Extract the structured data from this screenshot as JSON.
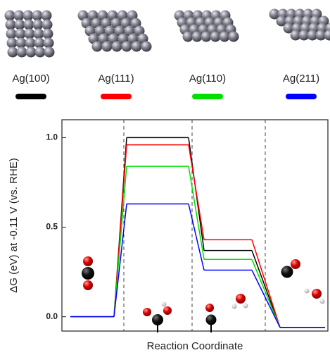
{
  "chart_data": {
    "type": "step",
    "y_label": "ΔG (eV) at -0.11 V (vs. RHE)",
    "x_label": "Reaction Coordinate",
    "categories": [
      null,
      null,
      null,
      null
    ],
    "ylim": [
      -0.08,
      1.1
    ],
    "yticks": [
      {
        "value": 0,
        "label": "0.0"
      },
      {
        "value": 0.5,
        "label": "0.5"
      },
      {
        "value": 1,
        "label": "1.0"
      }
    ],
    "series": [
      {
        "name": "Ag(100)",
        "color": "#000000",
        "values": [
          0,
          1.0,
          0.37,
          -0.06
        ]
      },
      {
        "name": "Ag(111)",
        "color": "#ff0000",
        "values": [
          0,
          0.96,
          0.43,
          -0.06
        ]
      },
      {
        "name": "Ag(110)",
        "color": "#00e000",
        "values": [
          0,
          0.84,
          0.32,
          -0.06
        ]
      },
      {
        "name": "Ag(211)",
        "color": "#0000ff",
        "values": [
          0,
          0.63,
          0.26,
          -0.06
        ]
      }
    ]
  }
}
